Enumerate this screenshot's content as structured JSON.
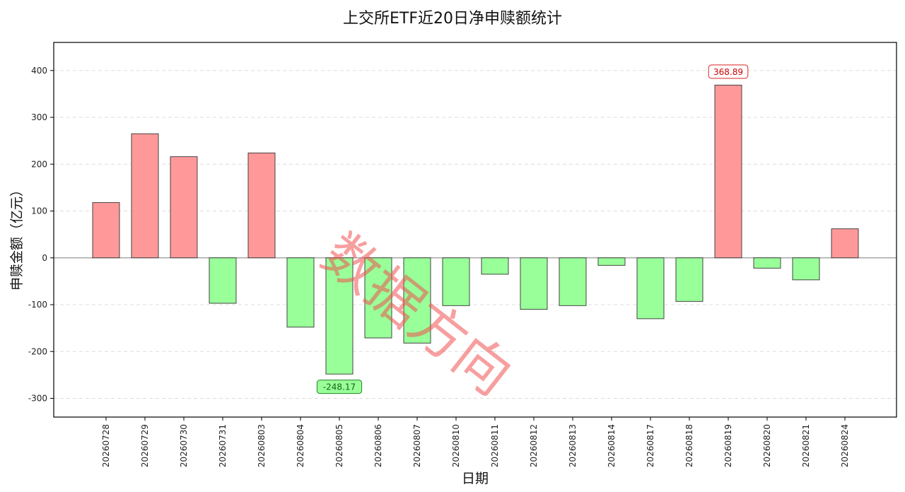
{
  "colors": {
    "positive_fill": "#ff9999",
    "negative_fill": "#99ff99",
    "bar_edge": "#333333",
    "max_label_border": "#dd2222",
    "max_label_text": "#cc0000",
    "min_label_border": "#228822",
    "min_label_fill": "#99ff99",
    "min_label_text": "#116611",
    "grid": "#dddddd",
    "zero_line": "#999999",
    "watermark": "#f05050"
  },
  "watermark": "数据方向",
  "chart_data": {
    "type": "bar",
    "title": "上交所ETF近20日净申赎额统计",
    "xlabel": "日期",
    "ylabel": "申赎金额（亿元）",
    "ylim": [
      -340,
      460
    ],
    "yticks": [
      -300,
      -200,
      -100,
      0,
      100,
      200,
      300,
      400
    ],
    "grid": true,
    "categories": [
      "20260728",
      "20260729",
      "20260730",
      "20260731",
      "20260803",
      "20260804",
      "20260805",
      "20260806",
      "20260807",
      "20260810",
      "20260811",
      "20260812",
      "20260813",
      "20260814",
      "20260817",
      "20260818",
      "20260819",
      "20260820",
      "20260821",
      "20260824"
    ],
    "values": [
      118,
      265,
      216,
      -97,
      224,
      -148,
      -248.17,
      -171,
      -182,
      -102,
      -35,
      -110,
      -102,
      -16,
      -130,
      -93,
      368.89,
      -22,
      -47,
      62
    ],
    "annotations": [
      {
        "category": "20260819",
        "text": "368.89",
        "kind": "max"
      },
      {
        "category": "20260805",
        "text": "-248.17",
        "kind": "min"
      }
    ]
  }
}
